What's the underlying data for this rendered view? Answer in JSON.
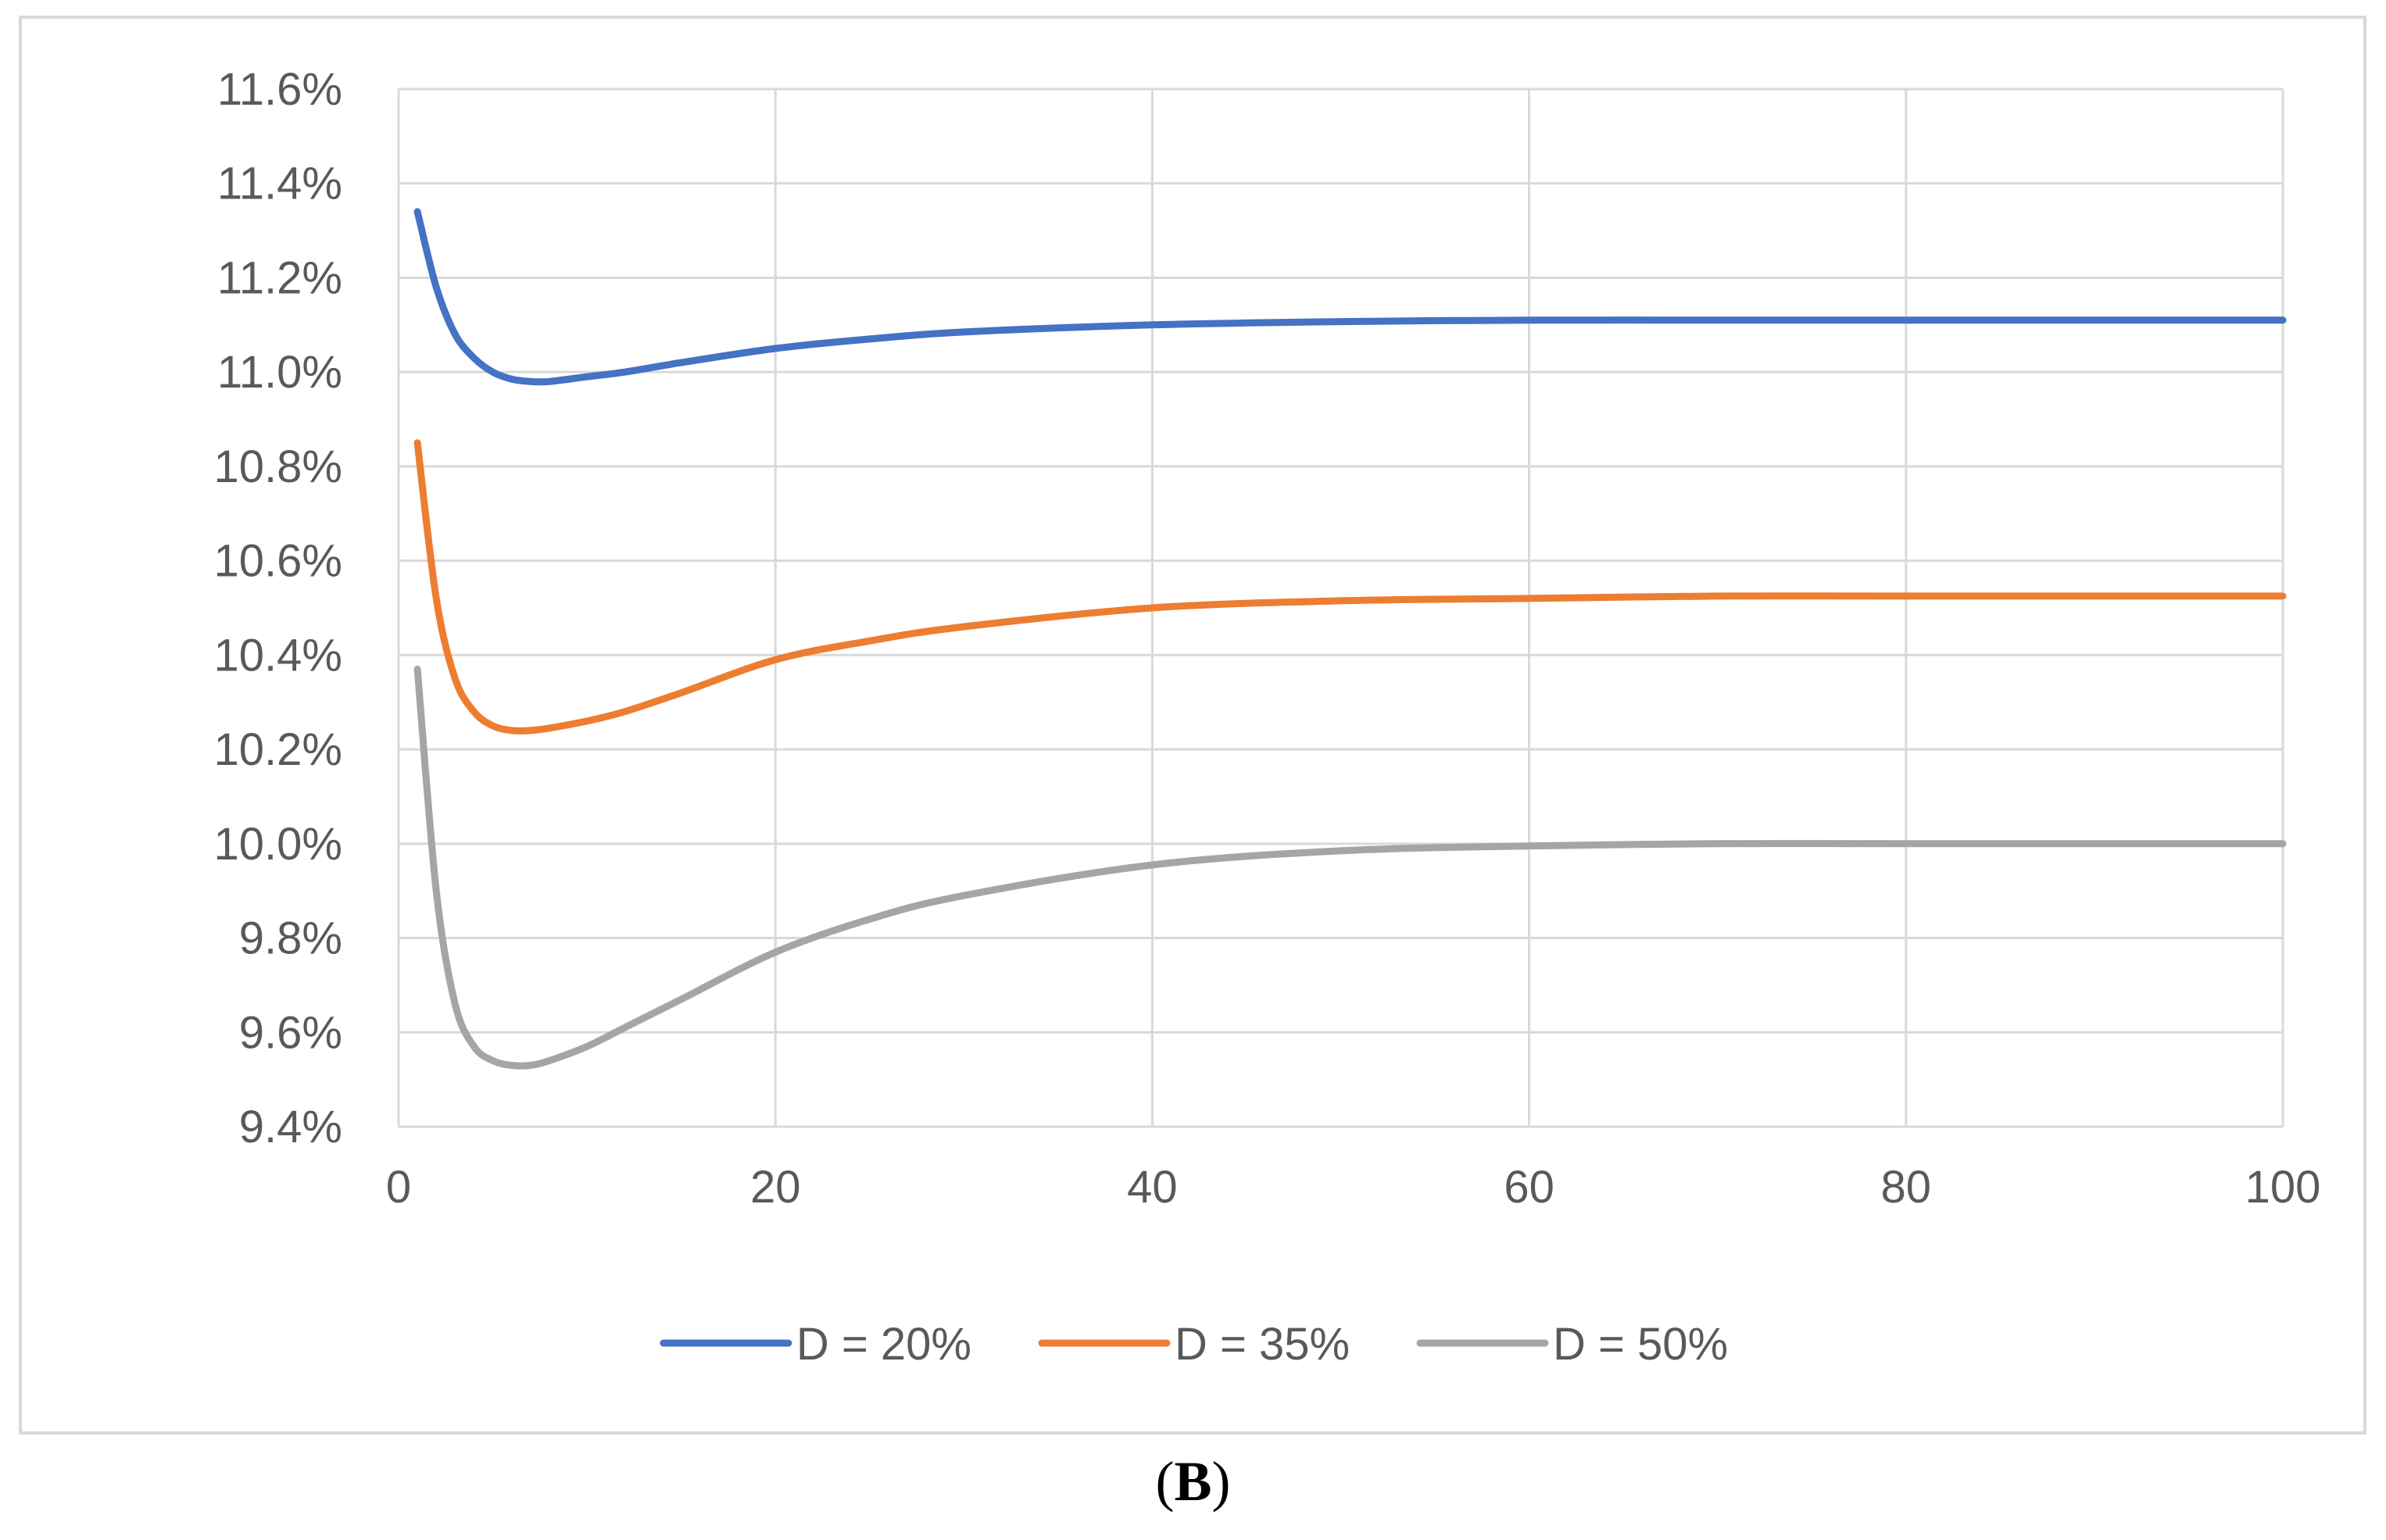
{
  "chart_data": {
    "type": "line",
    "title": "",
    "xlabel": "",
    "ylabel": "",
    "xlim": [
      0,
      100
    ],
    "ylim": [
      9.4,
      11.6
    ],
    "x_ticks": [
      "0",
      "20",
      "40",
      "60",
      "80",
      "100"
    ],
    "x_tick_values": [
      0,
      20,
      40,
      60,
      80,
      100
    ],
    "y_ticks": [
      "9.4%",
      "9.6%",
      "9.8%",
      "10.0%",
      "10.2%",
      "10.4%",
      "10.6%",
      "10.8%",
      "11.0%",
      "11.2%",
      "11.4%",
      "11.6%"
    ],
    "y_tick_values": [
      9.4,
      9.6,
      9.8,
      10.0,
      10.2,
      10.4,
      10.6,
      10.8,
      11.0,
      11.2,
      11.4,
      11.6
    ],
    "grid": true,
    "legend_position": "bottom",
    "series": [
      {
        "name": "D = 20%",
        "color": "#4472c4",
        "x": [
          1,
          2,
          3,
          4,
          5,
          6,
          7,
          8,
          10,
          12,
          15,
          20,
          25,
          30,
          40,
          50,
          60,
          70,
          80,
          90,
          100
        ],
        "y": [
          11.34,
          11.18,
          11.08,
          11.03,
          11.0,
          10.985,
          10.98,
          10.98,
          10.99,
          11.0,
          11.02,
          11.05,
          11.07,
          11.085,
          11.1,
          11.107,
          11.11,
          11.11,
          11.11,
          11.11,
          11.11
        ]
      },
      {
        "name": "D = 35%",
        "color": "#ed7d31",
        "x": [
          1,
          2,
          3,
          4,
          5,
          6,
          7,
          8,
          10,
          12,
          15,
          20,
          25,
          30,
          40,
          50,
          60,
          70,
          80,
          90,
          100
        ],
        "y": [
          10.85,
          10.52,
          10.35,
          10.28,
          10.25,
          10.24,
          10.24,
          10.245,
          10.26,
          10.28,
          10.32,
          10.39,
          10.43,
          10.46,
          10.5,
          10.515,
          10.52,
          10.525,
          10.525,
          10.525,
          10.525
        ]
      },
      {
        "name": "D = 50%",
        "color": "#a5a5a5",
        "x": [
          1,
          2,
          3,
          4,
          5,
          6,
          7,
          8,
          10,
          12,
          15,
          20,
          25,
          30,
          40,
          50,
          60,
          70,
          80,
          90,
          100
        ],
        "y": [
          10.37,
          9.9,
          9.66,
          9.57,
          9.54,
          9.53,
          9.53,
          9.54,
          9.57,
          9.61,
          9.67,
          9.77,
          9.84,
          9.89,
          9.955,
          9.985,
          9.995,
          10.0,
          10.0,
          10.0,
          10.0
        ]
      }
    ]
  },
  "panel_label": {
    "open": "(",
    "letter": "B",
    "close": ")"
  }
}
